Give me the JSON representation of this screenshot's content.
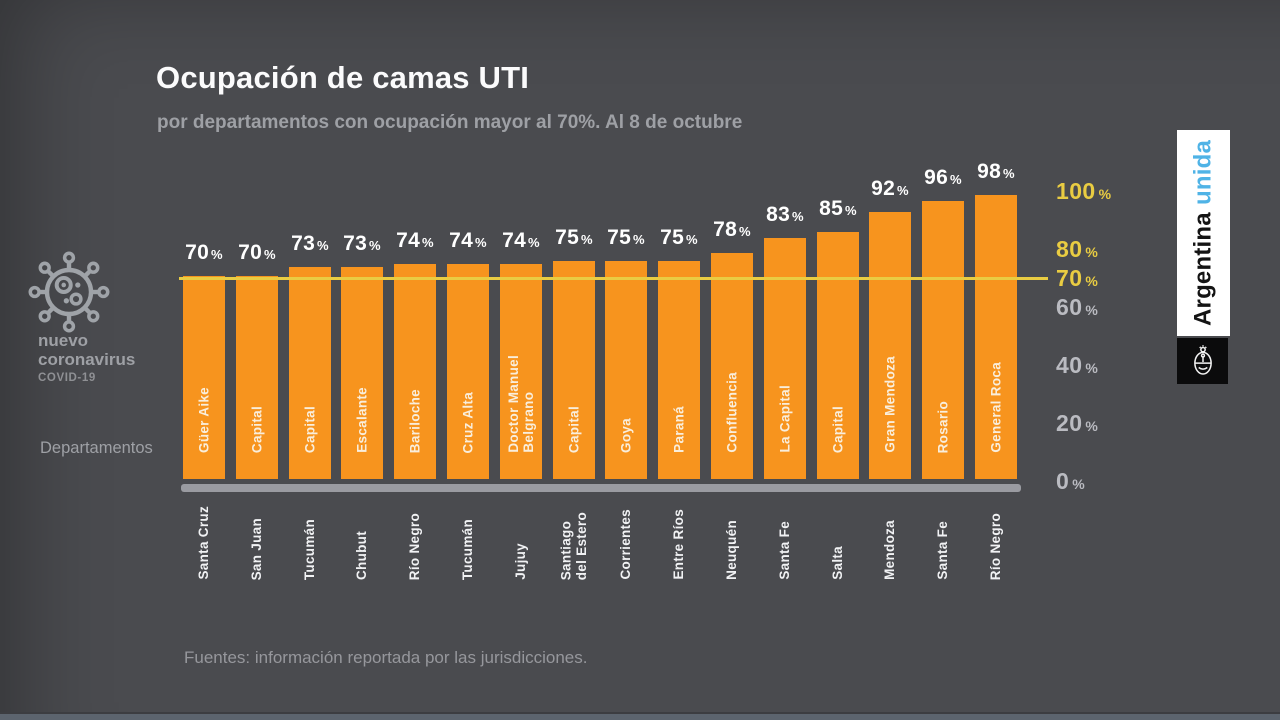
{
  "slide": {
    "title": "Ocupación de camas UTI",
    "subtitle": "por departamentos con ocupación mayor al 70%. Al 8 de octubre",
    "footer": "Fuentes: información reportada por las jurisdicciones.",
    "axis_label": "Departamentos"
  },
  "sidebar": {
    "brand_line1": "nuevo",
    "brand_line2": "coronavirus",
    "brand_sub": "COVID-19",
    "icon": "coronavirus-icon"
  },
  "branding": {
    "text_black": "Argentina",
    "text_blue": "unida",
    "icon": "argentina-coat-of-arms"
  },
  "colors": {
    "background": "#4A4B4F",
    "bar": "#F7941E",
    "reference_yellow": "#E9CC42",
    "muted_text": "#9EA0A5",
    "baseline_gray": "#9A9BA1",
    "department_text": "#F9EEDC",
    "tick_gray": "#BABBC1",
    "unida_blue": "#4FB3E6",
    "bottom_strip": "#5C646E"
  },
  "chart_data": {
    "type": "bar",
    "title": "Ocupación de camas UTI",
    "subtitle": "por departamentos con ocupación mayor al 70%. Al 8 de octubre",
    "xlabel": "Departamentos",
    "ylabel": "",
    "unit": "%",
    "ylim": [
      0,
      100
    ],
    "grid": false,
    "legend": "none",
    "reference_line": 70,
    "yticks": [
      {
        "value": 100,
        "highlight": true
      },
      {
        "value": 80,
        "highlight": true
      },
      {
        "value": 70,
        "highlight": true
      },
      {
        "value": 60,
        "highlight": false
      },
      {
        "value": 40,
        "highlight": false
      },
      {
        "value": 20,
        "highlight": false
      },
      {
        "value": 0,
        "highlight": false
      }
    ],
    "bars": [
      {
        "department": "Güer Aike",
        "province": "Santa Cruz",
        "value": 70
      },
      {
        "department": "Capital",
        "province": "San Juan",
        "value": 70
      },
      {
        "department": "Capital",
        "province": "Tucumán",
        "value": 73
      },
      {
        "department": "Escalante",
        "province": "Chubut",
        "value": 73
      },
      {
        "department": "Bariloche",
        "province": "Río Negro",
        "value": 74
      },
      {
        "department": "Cruz Alta",
        "province": "Tucumán",
        "value": 74
      },
      {
        "department": "Doctor Manuel\nBelgrano",
        "province": "Jujuy",
        "value": 74
      },
      {
        "department": "Capital",
        "province": "Santiago\ndel Estero",
        "value": 75
      },
      {
        "department": "Goya",
        "province": "Corrientes",
        "value": 75
      },
      {
        "department": "Paraná",
        "province": "Entre Ríos",
        "value": 75
      },
      {
        "department": "Confluencia",
        "province": "Neuquén",
        "value": 78
      },
      {
        "department": "La Capital",
        "province": "Santa Fe",
        "value": 83
      },
      {
        "department": "Capital",
        "province": "Salta",
        "value": 85
      },
      {
        "department": "Gran Mendoza",
        "province": "Mendoza",
        "value": 92
      },
      {
        "department": "Rosario",
        "province": "Santa Fe",
        "value": 96
      },
      {
        "department": "General Roca",
        "province": "Río Negro",
        "value": 98
      }
    ]
  }
}
